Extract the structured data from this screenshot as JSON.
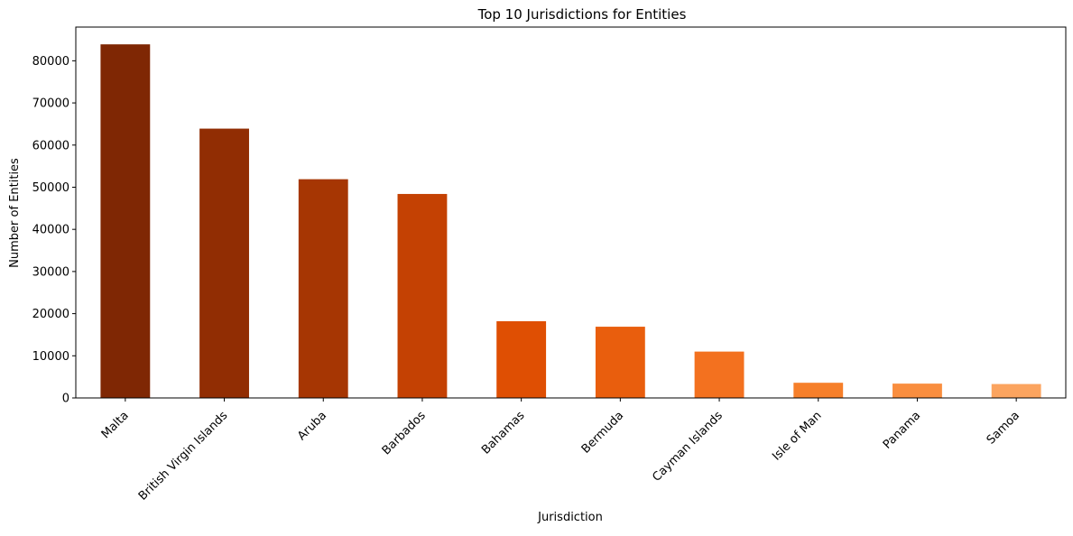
{
  "chart_data": {
    "type": "bar",
    "title": "Top 10 Jurisdictions for Entities",
    "xlabel": "Jurisdiction",
    "ylabel": "Number of Entities",
    "categories": [
      "Malta",
      "British Virgin Islands",
      "Aruba",
      "Barbados",
      "Bahamas",
      "Bermuda",
      "Cayman Islands",
      "Isle of Man",
      "Panama",
      "Samoa"
    ],
    "values": [
      83900,
      63900,
      51900,
      48400,
      18200,
      16900,
      11000,
      3600,
      3400,
      3300
    ],
    "colors": [
      "#7f2704",
      "#912d03",
      "#a63603",
      "#c44103",
      "#df4f03",
      "#e95e0d",
      "#f3711f",
      "#f67f2a",
      "#f98e3f",
      "#fba45f"
    ],
    "ylim": [
      0,
      88000
    ],
    "yticks": [
      0,
      10000,
      20000,
      30000,
      40000,
      50000,
      60000,
      70000,
      80000
    ],
    "grid": false,
    "legend": "none"
  }
}
